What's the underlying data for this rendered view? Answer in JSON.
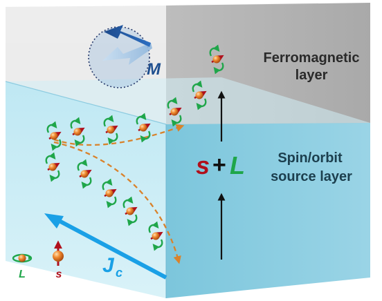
{
  "labels": {
    "ferromagnetic_line1": "Ferromagnetic",
    "ferromagnetic_line2": "layer",
    "source_line1": "Spin/orbit",
    "source_line2": "source layer",
    "magnetization": "M",
    "spin_symbol": "s",
    "plus": "+",
    "orbital_symbol": "L",
    "current_main": "J",
    "current_sub": "c",
    "legend_orbital": "L",
    "legend_spin": "s"
  },
  "colors": {
    "spin": "#b0101c",
    "orbital": "#1fa64a",
    "current": "#1aa0e6",
    "magnetization": "#1f4f8f",
    "trajectory": "#d9822b",
    "sphere": "#e8802c"
  },
  "icons": [
    "magnetization-arrow-icon",
    "spin-orbit-particle-icon",
    "current-arrow-icon",
    "flow-arrow-icon"
  ]
}
